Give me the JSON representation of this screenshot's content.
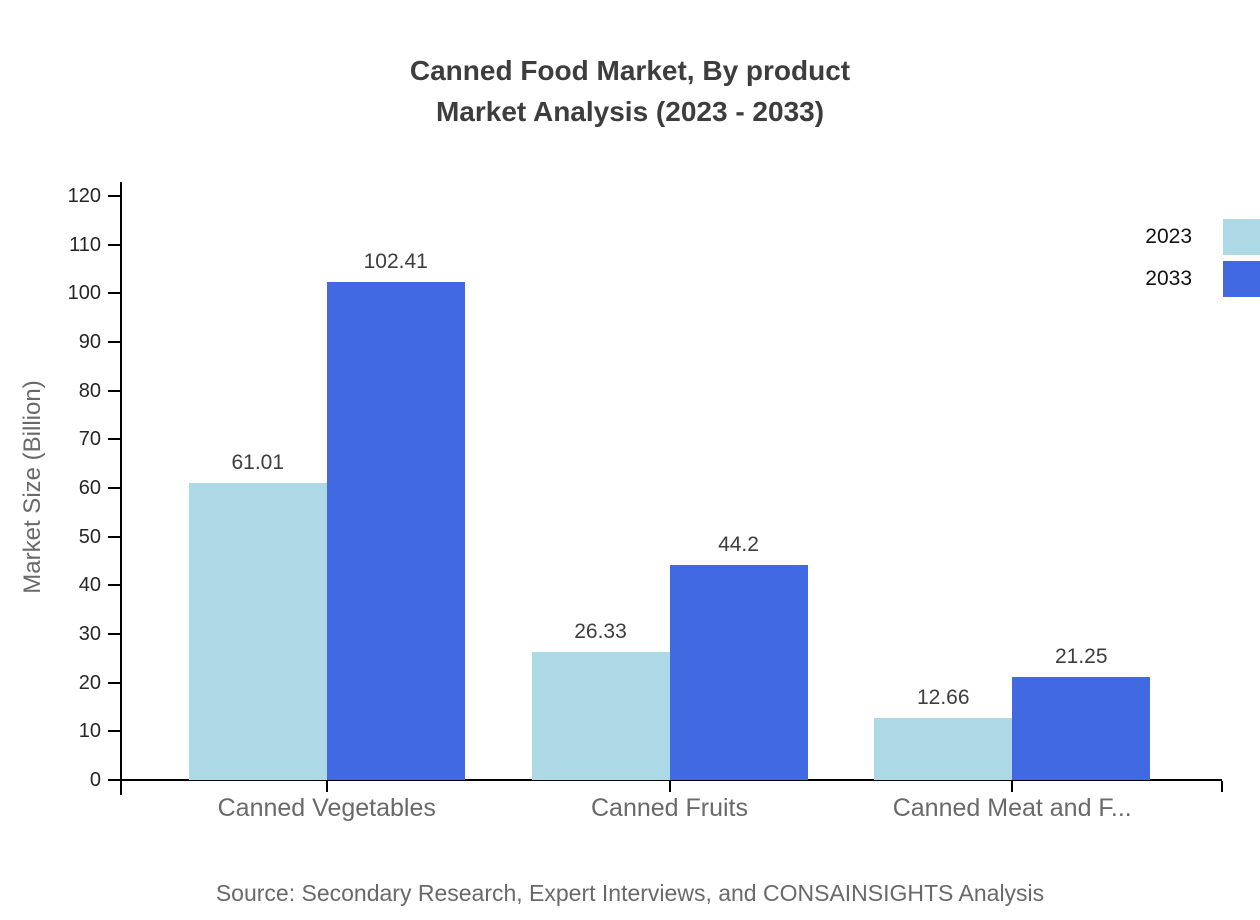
{
  "title": {
    "line1": "Canned Food Market, By product",
    "line2": "Market Analysis (2023 - 2033)"
  },
  "source": "Source: Secondary Research, Expert Interviews, and CONSAINSIGHTS Analysis",
  "legend": {
    "items": [
      {
        "label": "2023",
        "color": "#ADD8E6"
      },
      {
        "label": "2033",
        "color": "#4169E1"
      }
    ]
  },
  "chart_data": {
    "type": "bar",
    "title": "Canned Food Market, By product Market Analysis (2023 - 2033)",
    "categories": [
      "Canned Vegetables",
      "Canned Fruits",
      "Canned Meat and F..."
    ],
    "series": [
      {
        "name": "2023",
        "color": "#ADD8E6",
        "values": [
          61.01,
          26.33,
          12.66
        ]
      },
      {
        "name": "2033",
        "color": "#4169E1",
        "values": [
          102.41,
          44.2,
          21.25
        ]
      }
    ],
    "xlabel": "",
    "ylabel": "Market Size (Billion)",
    "ylim": [
      0,
      120
    ],
    "ytick_step": 10,
    "grid": false,
    "legend_position": "top-right",
    "value_labels_shown": true
  }
}
